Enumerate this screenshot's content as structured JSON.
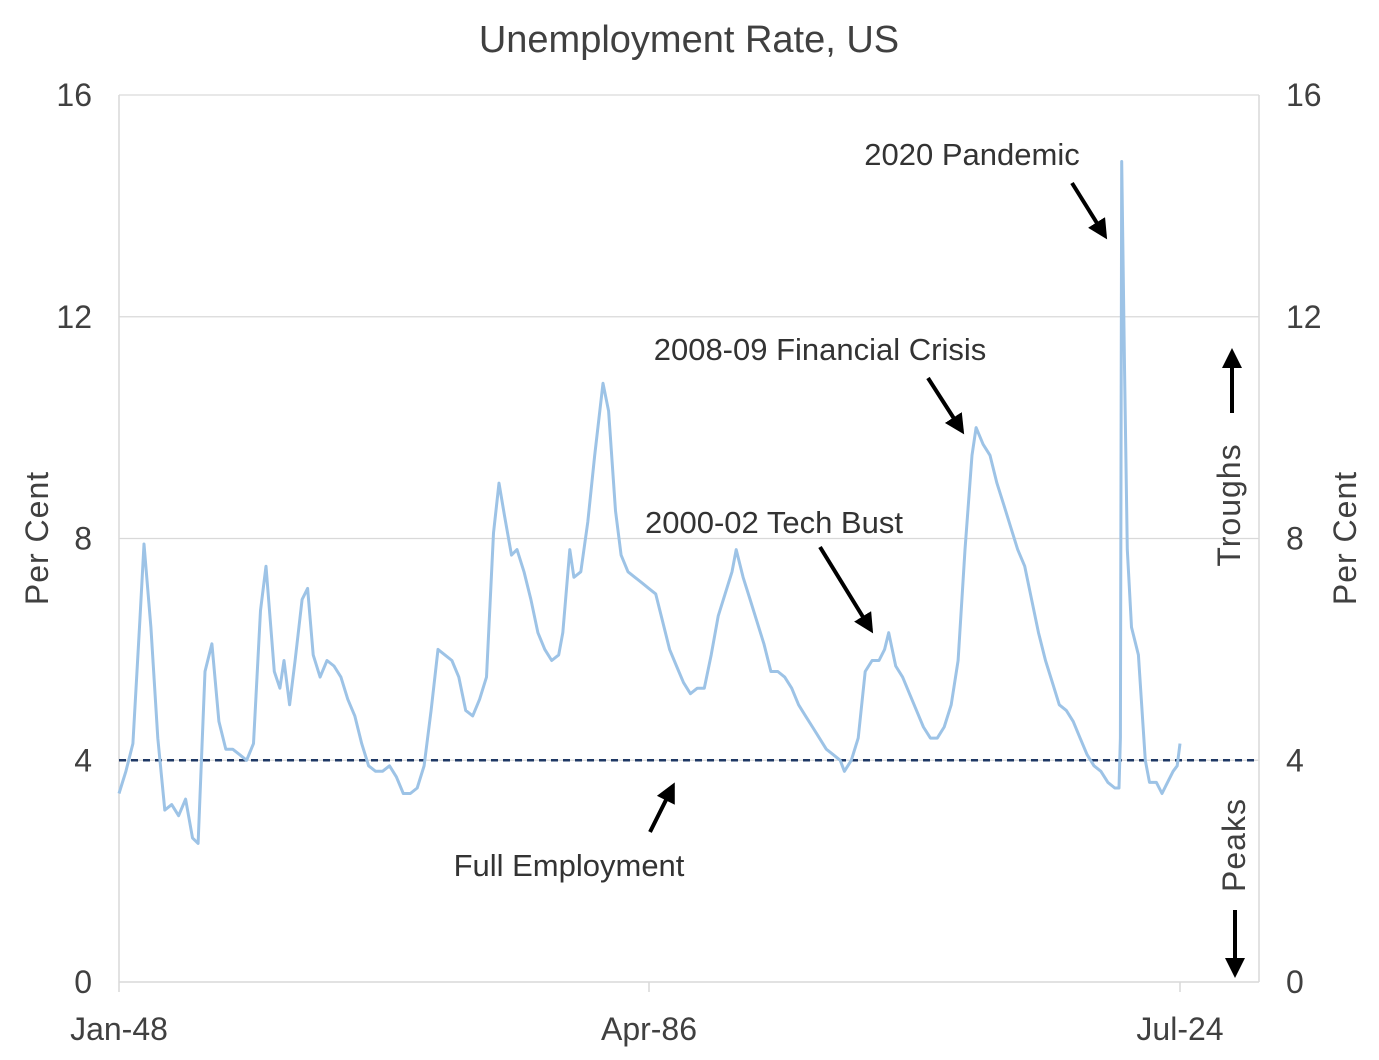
{
  "chart_data": {
    "type": "line",
    "title": "Unemployment Rate, US",
    "ylabel_left": "Per  Cent",
    "ylabel_right": "Per  Cent",
    "ylim": [
      0,
      16
    ],
    "yticks": [
      0,
      4,
      8,
      12,
      16
    ],
    "x_tick_labels": [
      "Jan-48",
      "Apr-86",
      "Jul-24"
    ],
    "x_range": [
      "1948-01",
      "2024-07"
    ],
    "grid": true,
    "reference_line": {
      "label": "Full Employment",
      "y": 4,
      "style": "dashed",
      "color": "#1f3864"
    },
    "annotations": [
      {
        "text": "2020 Pandemic",
        "x": 2020.3
      },
      {
        "text": "2008-09 Financial Crisis",
        "x": 2009.8
      },
      {
        "text": "2000-02 Tech Bust",
        "x": 2003.5
      },
      {
        "text": "Full Employment",
        "x": 1988.0
      }
    ],
    "side_labels": {
      "troughs": "Troughs",
      "peaks": "Peaks"
    },
    "series": [
      {
        "color": "#9dc3e6",
        "points": [
          [
            1948.0,
            3.4
          ],
          [
            1948.5,
            3.8
          ],
          [
            1949.0,
            4.3
          ],
          [
            1949.5,
            6.5
          ],
          [
            1949.8,
            7.9
          ],
          [
            1950.3,
            6.4
          ],
          [
            1950.8,
            4.4
          ],
          [
            1951.3,
            3.1
          ],
          [
            1951.8,
            3.2
          ],
          [
            1952.3,
            3.0
          ],
          [
            1952.8,
            3.3
          ],
          [
            1953.3,
            2.6
          ],
          [
            1953.7,
            2.5
          ],
          [
            1954.2,
            5.6
          ],
          [
            1954.7,
            6.1
          ],
          [
            1955.2,
            4.7
          ],
          [
            1955.7,
            4.2
          ],
          [
            1956.2,
            4.2
          ],
          [
            1956.7,
            4.1
          ],
          [
            1957.2,
            4.0
          ],
          [
            1957.7,
            4.3
          ],
          [
            1958.2,
            6.7
          ],
          [
            1958.6,
            7.5
          ],
          [
            1959.2,
            5.6
          ],
          [
            1959.6,
            5.3
          ],
          [
            1959.9,
            5.8
          ],
          [
            1960.3,
            5.0
          ],
          [
            1960.7,
            5.8
          ],
          [
            1961.2,
            6.9
          ],
          [
            1961.6,
            7.1
          ],
          [
            1962.0,
            5.9
          ],
          [
            1962.5,
            5.5
          ],
          [
            1963.0,
            5.8
          ],
          [
            1963.5,
            5.7
          ],
          [
            1964.0,
            5.5
          ],
          [
            1964.5,
            5.1
          ],
          [
            1965.0,
            4.8
          ],
          [
            1965.5,
            4.3
          ],
          [
            1966.0,
            3.9
          ],
          [
            1966.5,
            3.8
          ],
          [
            1967.0,
            3.8
          ],
          [
            1967.5,
            3.9
          ],
          [
            1968.0,
            3.7
          ],
          [
            1968.5,
            3.4
          ],
          [
            1969.0,
            3.4
          ],
          [
            1969.5,
            3.5
          ],
          [
            1970.0,
            3.9
          ],
          [
            1970.5,
            4.9
          ],
          [
            1971.0,
            6.0
          ],
          [
            1971.5,
            5.9
          ],
          [
            1972.0,
            5.8
          ],
          [
            1972.5,
            5.5
          ],
          [
            1973.0,
            4.9
          ],
          [
            1973.5,
            4.8
          ],
          [
            1974.0,
            5.1
          ],
          [
            1974.5,
            5.5
          ],
          [
            1975.0,
            8.1
          ],
          [
            1975.4,
            9.0
          ],
          [
            1975.8,
            8.4
          ],
          [
            1976.3,
            7.7
          ],
          [
            1976.7,
            7.8
          ],
          [
            1977.2,
            7.4
          ],
          [
            1977.7,
            6.9
          ],
          [
            1978.2,
            6.3
          ],
          [
            1978.7,
            6.0
          ],
          [
            1979.2,
            5.8
          ],
          [
            1979.7,
            5.9
          ],
          [
            1980.0,
            6.3
          ],
          [
            1980.5,
            7.8
          ],
          [
            1980.8,
            7.3
          ],
          [
            1981.3,
            7.4
          ],
          [
            1981.8,
            8.3
          ],
          [
            1982.3,
            9.5
          ],
          [
            1982.9,
            10.8
          ],
          [
            1983.3,
            10.3
          ],
          [
            1983.8,
            8.5
          ],
          [
            1984.2,
            7.7
          ],
          [
            1984.7,
            7.4
          ],
          [
            1985.2,
            7.3
          ],
          [
            1985.7,
            7.2
          ],
          [
            1986.2,
            7.1
          ],
          [
            1986.7,
            7.0
          ],
          [
            1987.2,
            6.5
          ],
          [
            1987.7,
            6.0
          ],
          [
            1988.2,
            5.7
          ],
          [
            1988.7,
            5.4
          ],
          [
            1989.2,
            5.2
          ],
          [
            1989.7,
            5.3
          ],
          [
            1990.2,
            5.3
          ],
          [
            1990.7,
            5.9
          ],
          [
            1991.2,
            6.6
          ],
          [
            1991.7,
            7.0
          ],
          [
            1992.2,
            7.4
          ],
          [
            1992.5,
            7.8
          ],
          [
            1993.0,
            7.3
          ],
          [
            1993.5,
            6.9
          ],
          [
            1994.0,
            6.5
          ],
          [
            1994.5,
            6.1
          ],
          [
            1995.0,
            5.6
          ],
          [
            1995.5,
            5.6
          ],
          [
            1996.0,
            5.5
          ],
          [
            1996.5,
            5.3
          ],
          [
            1997.0,
            5.0
          ],
          [
            1997.5,
            4.8
          ],
          [
            1998.0,
            4.6
          ],
          [
            1998.5,
            4.4
          ],
          [
            1999.0,
            4.2
          ],
          [
            1999.5,
            4.1
          ],
          [
            2000.0,
            4.0
          ],
          [
            2000.3,
            3.8
          ],
          [
            2000.8,
            4.0
          ],
          [
            2001.3,
            4.4
          ],
          [
            2001.8,
            5.6
          ],
          [
            2002.3,
            5.8
          ],
          [
            2002.8,
            5.8
          ],
          [
            2003.2,
            6.0
          ],
          [
            2003.5,
            6.3
          ],
          [
            2004.0,
            5.7
          ],
          [
            2004.5,
            5.5
          ],
          [
            2005.0,
            5.2
          ],
          [
            2005.5,
            4.9
          ],
          [
            2006.0,
            4.6
          ],
          [
            2006.5,
            4.4
          ],
          [
            2007.0,
            4.4
          ],
          [
            2007.5,
            4.6
          ],
          [
            2008.0,
            5.0
          ],
          [
            2008.5,
            5.8
          ],
          [
            2009.0,
            7.8
          ],
          [
            2009.5,
            9.5
          ],
          [
            2009.8,
            10.0
          ],
          [
            2010.3,
            9.7
          ],
          [
            2010.8,
            9.5
          ],
          [
            2011.3,
            9.0
          ],
          [
            2011.8,
            8.6
          ],
          [
            2012.3,
            8.2
          ],
          [
            2012.8,
            7.8
          ],
          [
            2013.3,
            7.5
          ],
          [
            2013.8,
            6.9
          ],
          [
            2014.3,
            6.3
          ],
          [
            2014.8,
            5.8
          ],
          [
            2015.3,
            5.4
          ],
          [
            2015.8,
            5.0
          ],
          [
            2016.3,
            4.9
          ],
          [
            2016.8,
            4.7
          ],
          [
            2017.3,
            4.4
          ],
          [
            2017.8,
            4.1
          ],
          [
            2018.3,
            3.9
          ],
          [
            2018.8,
            3.8
          ],
          [
            2019.3,
            3.6
          ],
          [
            2019.8,
            3.5
          ],
          [
            2020.1,
            3.5
          ],
          [
            2020.2,
            4.4
          ],
          [
            2020.3,
            14.8
          ],
          [
            2020.5,
            11.1
          ],
          [
            2020.7,
            7.8
          ],
          [
            2021.0,
            6.4
          ],
          [
            2021.5,
            5.9
          ],
          [
            2022.0,
            4.0
          ],
          [
            2022.3,
            3.6
          ],
          [
            2022.8,
            3.6
          ],
          [
            2023.2,
            3.4
          ],
          [
            2023.6,
            3.6
          ],
          [
            2024.0,
            3.8
          ],
          [
            2024.3,
            3.9
          ],
          [
            2024.5,
            4.3
          ]
        ]
      }
    ]
  }
}
